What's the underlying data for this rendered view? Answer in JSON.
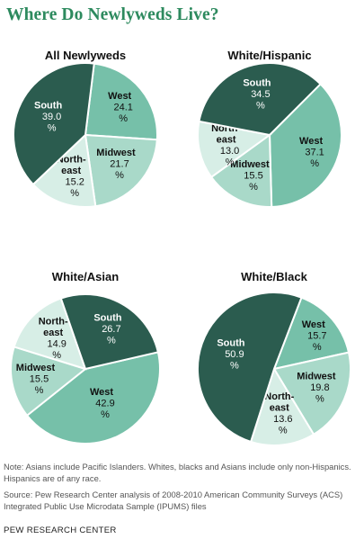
{
  "title": "Where Do Newlyweds Live?",
  "colors": {
    "South": "#2b5c4f",
    "West": "#76c0a9",
    "Midwest": "#a9d9c9",
    "Northeast": "#d7eee6"
  },
  "chart_data": [
    {
      "type": "pie",
      "title": "All Newlyweds",
      "slices": [
        {
          "category": "West",
          "label": "West",
          "value": 24.1,
          "text": "24.1"
        },
        {
          "category": "Midwest",
          "label": "Midwest",
          "value": 21.7,
          "text": "21.7"
        },
        {
          "category": "Northeast",
          "label": "North-east",
          "value": 15.2,
          "text": "15.2"
        },
        {
          "category": "South",
          "label": "South",
          "value": 39.0,
          "text": "39.0"
        }
      ]
    },
    {
      "type": "pie",
      "title": "White/Hispanic",
      "slices": [
        {
          "category": "West",
          "label": "West",
          "value": 37.1,
          "text": "37.1"
        },
        {
          "category": "Midwest",
          "label": "Midwest",
          "value": 15.5,
          "text": "15.5"
        },
        {
          "category": "Northeast",
          "label": "North-east",
          "value": 13.0,
          "text": "13.0"
        },
        {
          "category": "South",
          "label": "South",
          "value": 34.5,
          "text": "34.5"
        }
      ]
    },
    {
      "type": "pie",
      "title": "White/Asian",
      "slices": [
        {
          "category": "West",
          "label": "West",
          "value": 42.9,
          "text": "42.9"
        },
        {
          "category": "Midwest",
          "label": "Midwest",
          "value": 15.5,
          "text": "15.5"
        },
        {
          "category": "Northeast",
          "label": "North-east",
          "value": 14.9,
          "text": "14.9"
        },
        {
          "category": "South",
          "label": "South",
          "value": 26.7,
          "text": "26.7"
        }
      ]
    },
    {
      "type": "pie",
      "title": "White/Black",
      "slices": [
        {
          "category": "West",
          "label": "West",
          "value": 15.7,
          "text": "15.7"
        },
        {
          "category": "Midwest",
          "label": "Midwest",
          "value": 19.8,
          "text": "19.8"
        },
        {
          "category": "Northeast",
          "label": "North-east",
          "value": 13.6,
          "text": "13.6"
        },
        {
          "category": "South",
          "label": "South",
          "value": 50.9,
          "text": "50.9"
        }
      ]
    }
  ],
  "note": "Note: Asians include Pacific Islanders. Whites, blacks and Asians include only non-Hispanics. Hispanics are of any race.",
  "source": "Source: Pew Research Center analysis of 2008-2010 American Community Surveys (ACS) Integrated Public Use Microdata Sample (IPUMS) files",
  "credit": "PEW RESEARCH CENTER"
}
